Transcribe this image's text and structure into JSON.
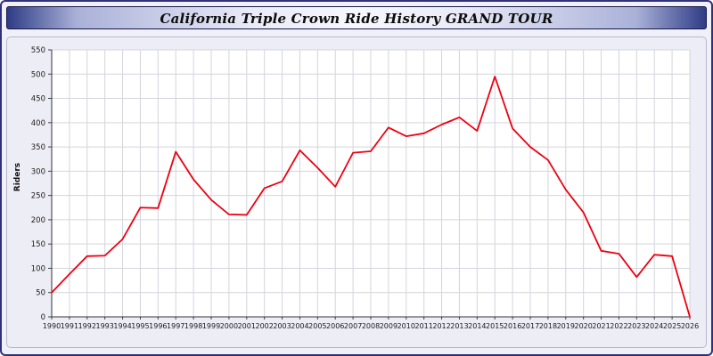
{
  "page": {
    "title": "California Triple Crown Ride History GRAND TOUR"
  },
  "chart_data": {
    "type": "line",
    "title": "California Triple Crown Ride History GRAND TOUR",
    "xlabel": "",
    "ylabel": "Riders",
    "ylim": [
      0,
      550
    ],
    "ytick_step": 50,
    "grid": true,
    "legend_position": "none",
    "line_color": "#ee0011",
    "plot_bg": "#ffffff",
    "grid_color": "#d4d4de",
    "categories": [
      "1990",
      "1991",
      "1992",
      "1993",
      "1994",
      "1995",
      "1996",
      "1997",
      "1998",
      "1999",
      "2000",
      "2001",
      "2002",
      "2003",
      "2004",
      "2005",
      "2006",
      "2007",
      "2008",
      "2009",
      "2010",
      "2011",
      "2012",
      "2013",
      "2014",
      "2015",
      "2016",
      "2017",
      "2018",
      "2019",
      "2020",
      "2021",
      "2022",
      "2023",
      "2024",
      "2025",
      "2026"
    ],
    "values": [
      50,
      88,
      125,
      126,
      160,
      225,
      224,
      340,
      283,
      241,
      211,
      210,
      265,
      279,
      343,
      307,
      268,
      338,
      341,
      390,
      372,
      378,
      396,
      411,
      383,
      495,
      388,
      350,
      323,
      262,
      215,
      136,
      130,
      82,
      128,
      125,
      0
    ]
  }
}
